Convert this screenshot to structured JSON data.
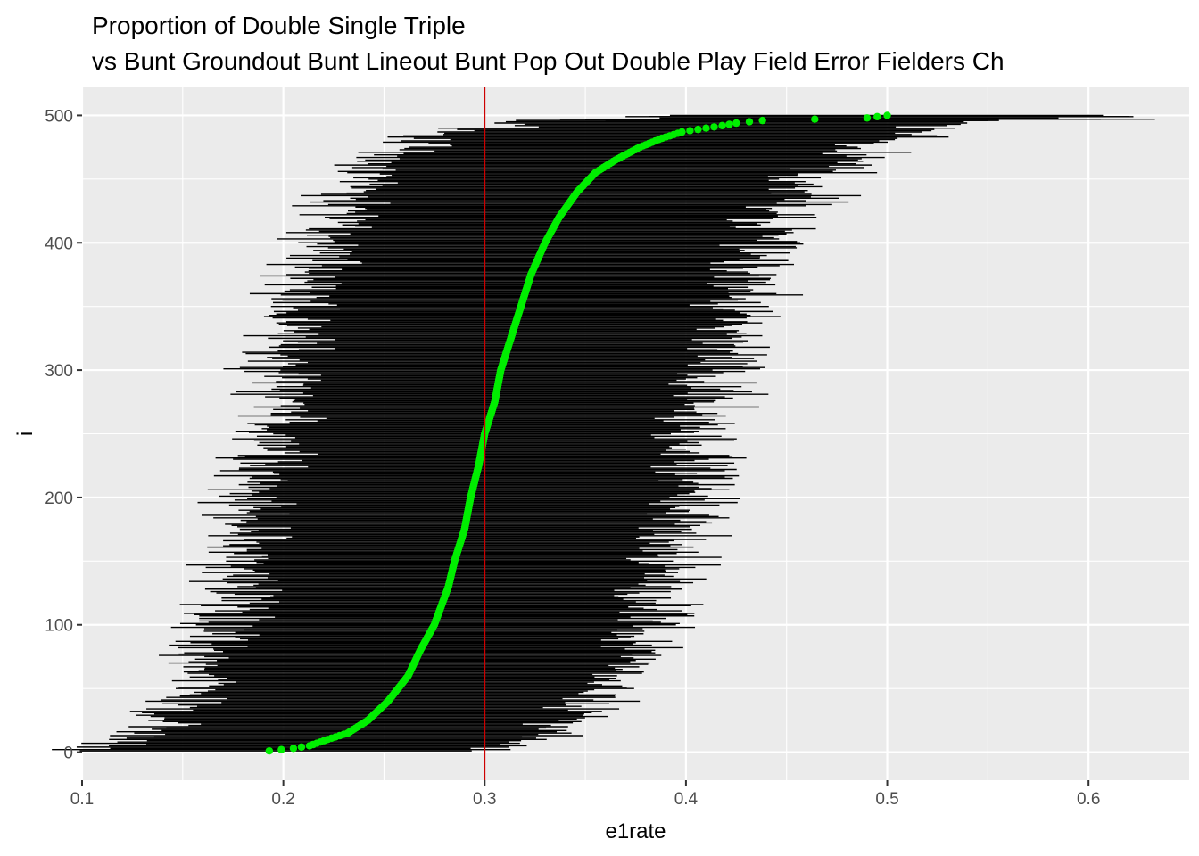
{
  "chart_data": {
    "type": "scatter",
    "title_line1": "Proportion of  Double Single Triple",
    "title_line2": "vs Bunt Groundout Bunt Lineout Bunt Pop Out Double Play Field Error Fielders Ch",
    "xlabel": "e1rate",
    "ylabel": "i",
    "xlim": [
      0.1,
      0.65
    ],
    "ylim": [
      -22,
      522
    ],
    "x_ticks": [
      0.1,
      0.2,
      0.3,
      0.4,
      0.5,
      0.6
    ],
    "x_tick_labels": [
      "0.1",
      "0.2",
      "0.3",
      "0.4",
      "0.5",
      "0.6"
    ],
    "y_ticks": [
      0,
      100,
      200,
      300,
      400,
      500
    ],
    "y_tick_labels": [
      "0",
      "100",
      "200",
      "300",
      "400",
      "500"
    ],
    "n_points": 500,
    "reference_line": {
      "x": 0.3,
      "color": "#cc0000"
    },
    "point_color": "#00ee00",
    "interval_color": "#000000",
    "panel_background": "#ebebeb",
    "grid": true,
    "point_quantiles": [
      {
        "i": 1,
        "x": 0.193
      },
      {
        "i": 3,
        "x": 0.205
      },
      {
        "i": 5,
        "x": 0.213
      },
      {
        "i": 10,
        "x": 0.222
      },
      {
        "i": 15,
        "x": 0.232
      },
      {
        "i": 25,
        "x": 0.242
      },
      {
        "i": 40,
        "x": 0.252
      },
      {
        "i": 60,
        "x": 0.262
      },
      {
        "i": 80,
        "x": 0.268
      },
      {
        "i": 100,
        "x": 0.275
      },
      {
        "i": 130,
        "x": 0.282
      },
      {
        "i": 150,
        "x": 0.285
      },
      {
        "i": 175,
        "x": 0.29
      },
      {
        "i": 200,
        "x": 0.293
      },
      {
        "i": 225,
        "x": 0.297
      },
      {
        "i": 250,
        "x": 0.3
      },
      {
        "i": 275,
        "x": 0.305
      },
      {
        "i": 300,
        "x": 0.308
      },
      {
        "i": 325,
        "x": 0.313
      },
      {
        "i": 350,
        "x": 0.318
      },
      {
        "i": 375,
        "x": 0.323
      },
      {
        "i": 400,
        "x": 0.33
      },
      {
        "i": 420,
        "x": 0.337
      },
      {
        "i": 440,
        "x": 0.346
      },
      {
        "i": 455,
        "x": 0.355
      },
      {
        "i": 465,
        "x": 0.365
      },
      {
        "i": 475,
        "x": 0.377
      },
      {
        "i": 482,
        "x": 0.388
      },
      {
        "i": 487,
        "x": 0.398
      },
      {
        "i": 490,
        "x": 0.41
      },
      {
        "i": 492,
        "x": 0.418
      },
      {
        "i": 494,
        "x": 0.425
      },
      {
        "i": 496,
        "x": 0.438
      },
      {
        "i": 498,
        "x": 0.49
      },
      {
        "i": 500,
        "x": 0.5
      }
    ]
  }
}
